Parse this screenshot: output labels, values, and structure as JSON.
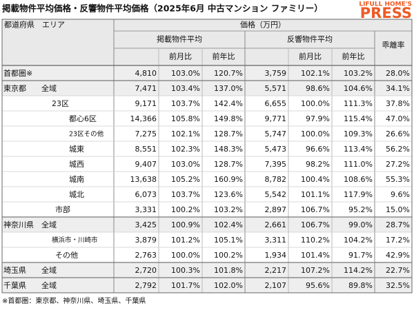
{
  "title": "掲載物件平均価格・反響物件平均価格（2025年6月 中古マンション ファミリー）",
  "logo": {
    "top": "LIFULL HOME'S",
    "bottom": "PRESS"
  },
  "table": {
    "header": {
      "area": "都道府県　エリア",
      "price": "価格（万円）",
      "listed": "掲載物件平均",
      "inquiry": "反響物件平均",
      "gap": "乖離率",
      "listed_sub": [
        "前月比",
        "前年比"
      ],
      "inquiry_sub": [
        "前月比",
        "前年比"
      ]
    },
    "rows": [
      {
        "area": [
          "首都圏※"
        ],
        "cells": [
          "4,810",
          "103.0%",
          "120.7%",
          "3,759",
          "102.1%",
          "103.2%",
          "28.0%"
        ]
      },
      {
        "area": [
          "東京都",
          "全域"
        ],
        "cells": [
          "7,471",
          "103.4%",
          "137.0%",
          "5,571",
          "98.6%",
          "104.6%",
          "34.1%"
        ]
      },
      {
        "area": [
          "23区"
        ],
        "cells": [
          "9,171",
          "103.7%",
          "142.4%",
          "6,655",
          "100.0%",
          "111.3%",
          "37.8%"
        ]
      },
      {
        "area": [
          "都心6区"
        ],
        "cells": [
          "14,366",
          "105.8%",
          "149.8%",
          "9,771",
          "97.9%",
          "115.4%",
          "47.0%"
        ]
      },
      {
        "area": [
          "23区その他"
        ],
        "cells": [
          "7,275",
          "102.1%",
          "128.7%",
          "5,747",
          "100.0%",
          "109.3%",
          "26.6%"
        ]
      },
      {
        "area": [
          "城東"
        ],
        "cells": [
          "8,551",
          "102.3%",
          "148.3%",
          "5,473",
          "96.6%",
          "113.4%",
          "56.2%"
        ]
      },
      {
        "area": [
          "城西"
        ],
        "cells": [
          "9,407",
          "103.0%",
          "128.7%",
          "7,395",
          "98.2%",
          "111.0%",
          "27.2%"
        ]
      },
      {
        "area": [
          "城南"
        ],
        "cells": [
          "13,638",
          "105.2%",
          "160.9%",
          "8,782",
          "100.4%",
          "108.6%",
          "55.3%"
        ]
      },
      {
        "area": [
          "城北"
        ],
        "cells": [
          "6,073",
          "103.7%",
          "123.6%",
          "5,542",
          "101.1%",
          "117.9%",
          "9.6%"
        ]
      },
      {
        "area": [
          "市部"
        ],
        "cells": [
          "3,331",
          "100.2%",
          "103.2%",
          "2,897",
          "106.7%",
          "95.2%",
          "15.0%"
        ]
      },
      {
        "area": [
          "神奈川県",
          "全域"
        ],
        "cells": [
          "3,425",
          "100.9%",
          "102.4%",
          "2,661",
          "106.7%",
          "99.0%",
          "28.7%"
        ]
      },
      {
        "area": [
          "横浜市・川崎市"
        ],
        "cells": [
          "3,879",
          "101.2%",
          "105.1%",
          "3,311",
          "110.2%",
          "104.2%",
          "17.2%"
        ]
      },
      {
        "area": [
          "その他"
        ],
        "cells": [
          "2,763",
          "100.0%",
          "100.2%",
          "1,934",
          "101.4%",
          "91.7%",
          "42.9%"
        ]
      },
      {
        "area": [
          "埼玉県",
          "全域"
        ],
        "cells": [
          "2,720",
          "100.3%",
          "101.8%",
          "2,217",
          "107.2%",
          "114.2%",
          "22.7%"
        ]
      },
      {
        "area": [
          "千葉県",
          "全域"
        ],
        "cells": [
          "2,792",
          "101.7%",
          "102.0%",
          "2,107",
          "95.6%",
          "89.8%",
          "32.5%"
        ]
      }
    ]
  },
  "footnote": "※首都圏：東京都、神奈川県、埼玉県、千葉県"
}
